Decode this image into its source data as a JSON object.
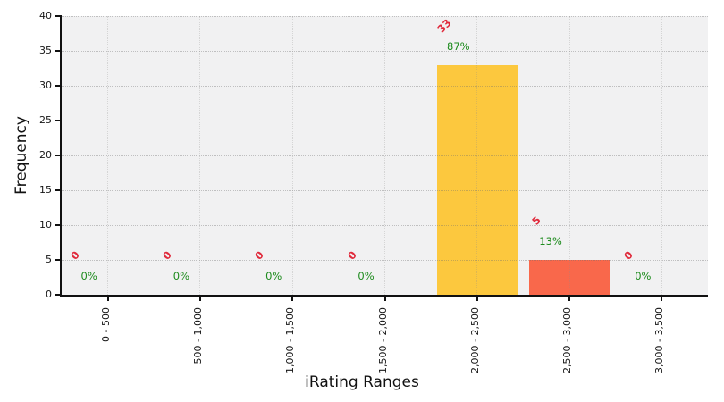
{
  "chart_data": {
    "type": "bar",
    "title": "",
    "xlabel": "iRating Ranges",
    "ylabel": "Frequency",
    "ylim": [
      0,
      40
    ],
    "yticks": [
      0,
      5,
      10,
      15,
      20,
      25,
      30,
      35,
      40
    ],
    "grid": true,
    "legend_position": "none",
    "categories": [
      "0 - 500",
      "500 - 1,000",
      "1,000 - 1,500",
      "1,500 - 2,000",
      "2,000 - 2,500",
      "2,500 - 3,000",
      "3,000 - 3,500"
    ],
    "values": [
      0,
      0,
      0,
      0,
      33,
      5,
      0
    ],
    "count_labels": [
      "0",
      "0",
      "0",
      "0",
      "33",
      "5",
      "0"
    ],
    "percent_labels": [
      "0%",
      "0%",
      "0%",
      "0%",
      "87%",
      "13%",
      "0%"
    ],
    "bar_colors": [
      null,
      null,
      null,
      null,
      "#fcc83e",
      "#f9684b",
      null
    ]
  },
  "colors": {
    "count_label": "#e02a3c",
    "percent_label": "#1d8b1d",
    "plot_bg": "#f1f1f2",
    "figure_bg": "#ffffff",
    "spine": "#111111"
  }
}
